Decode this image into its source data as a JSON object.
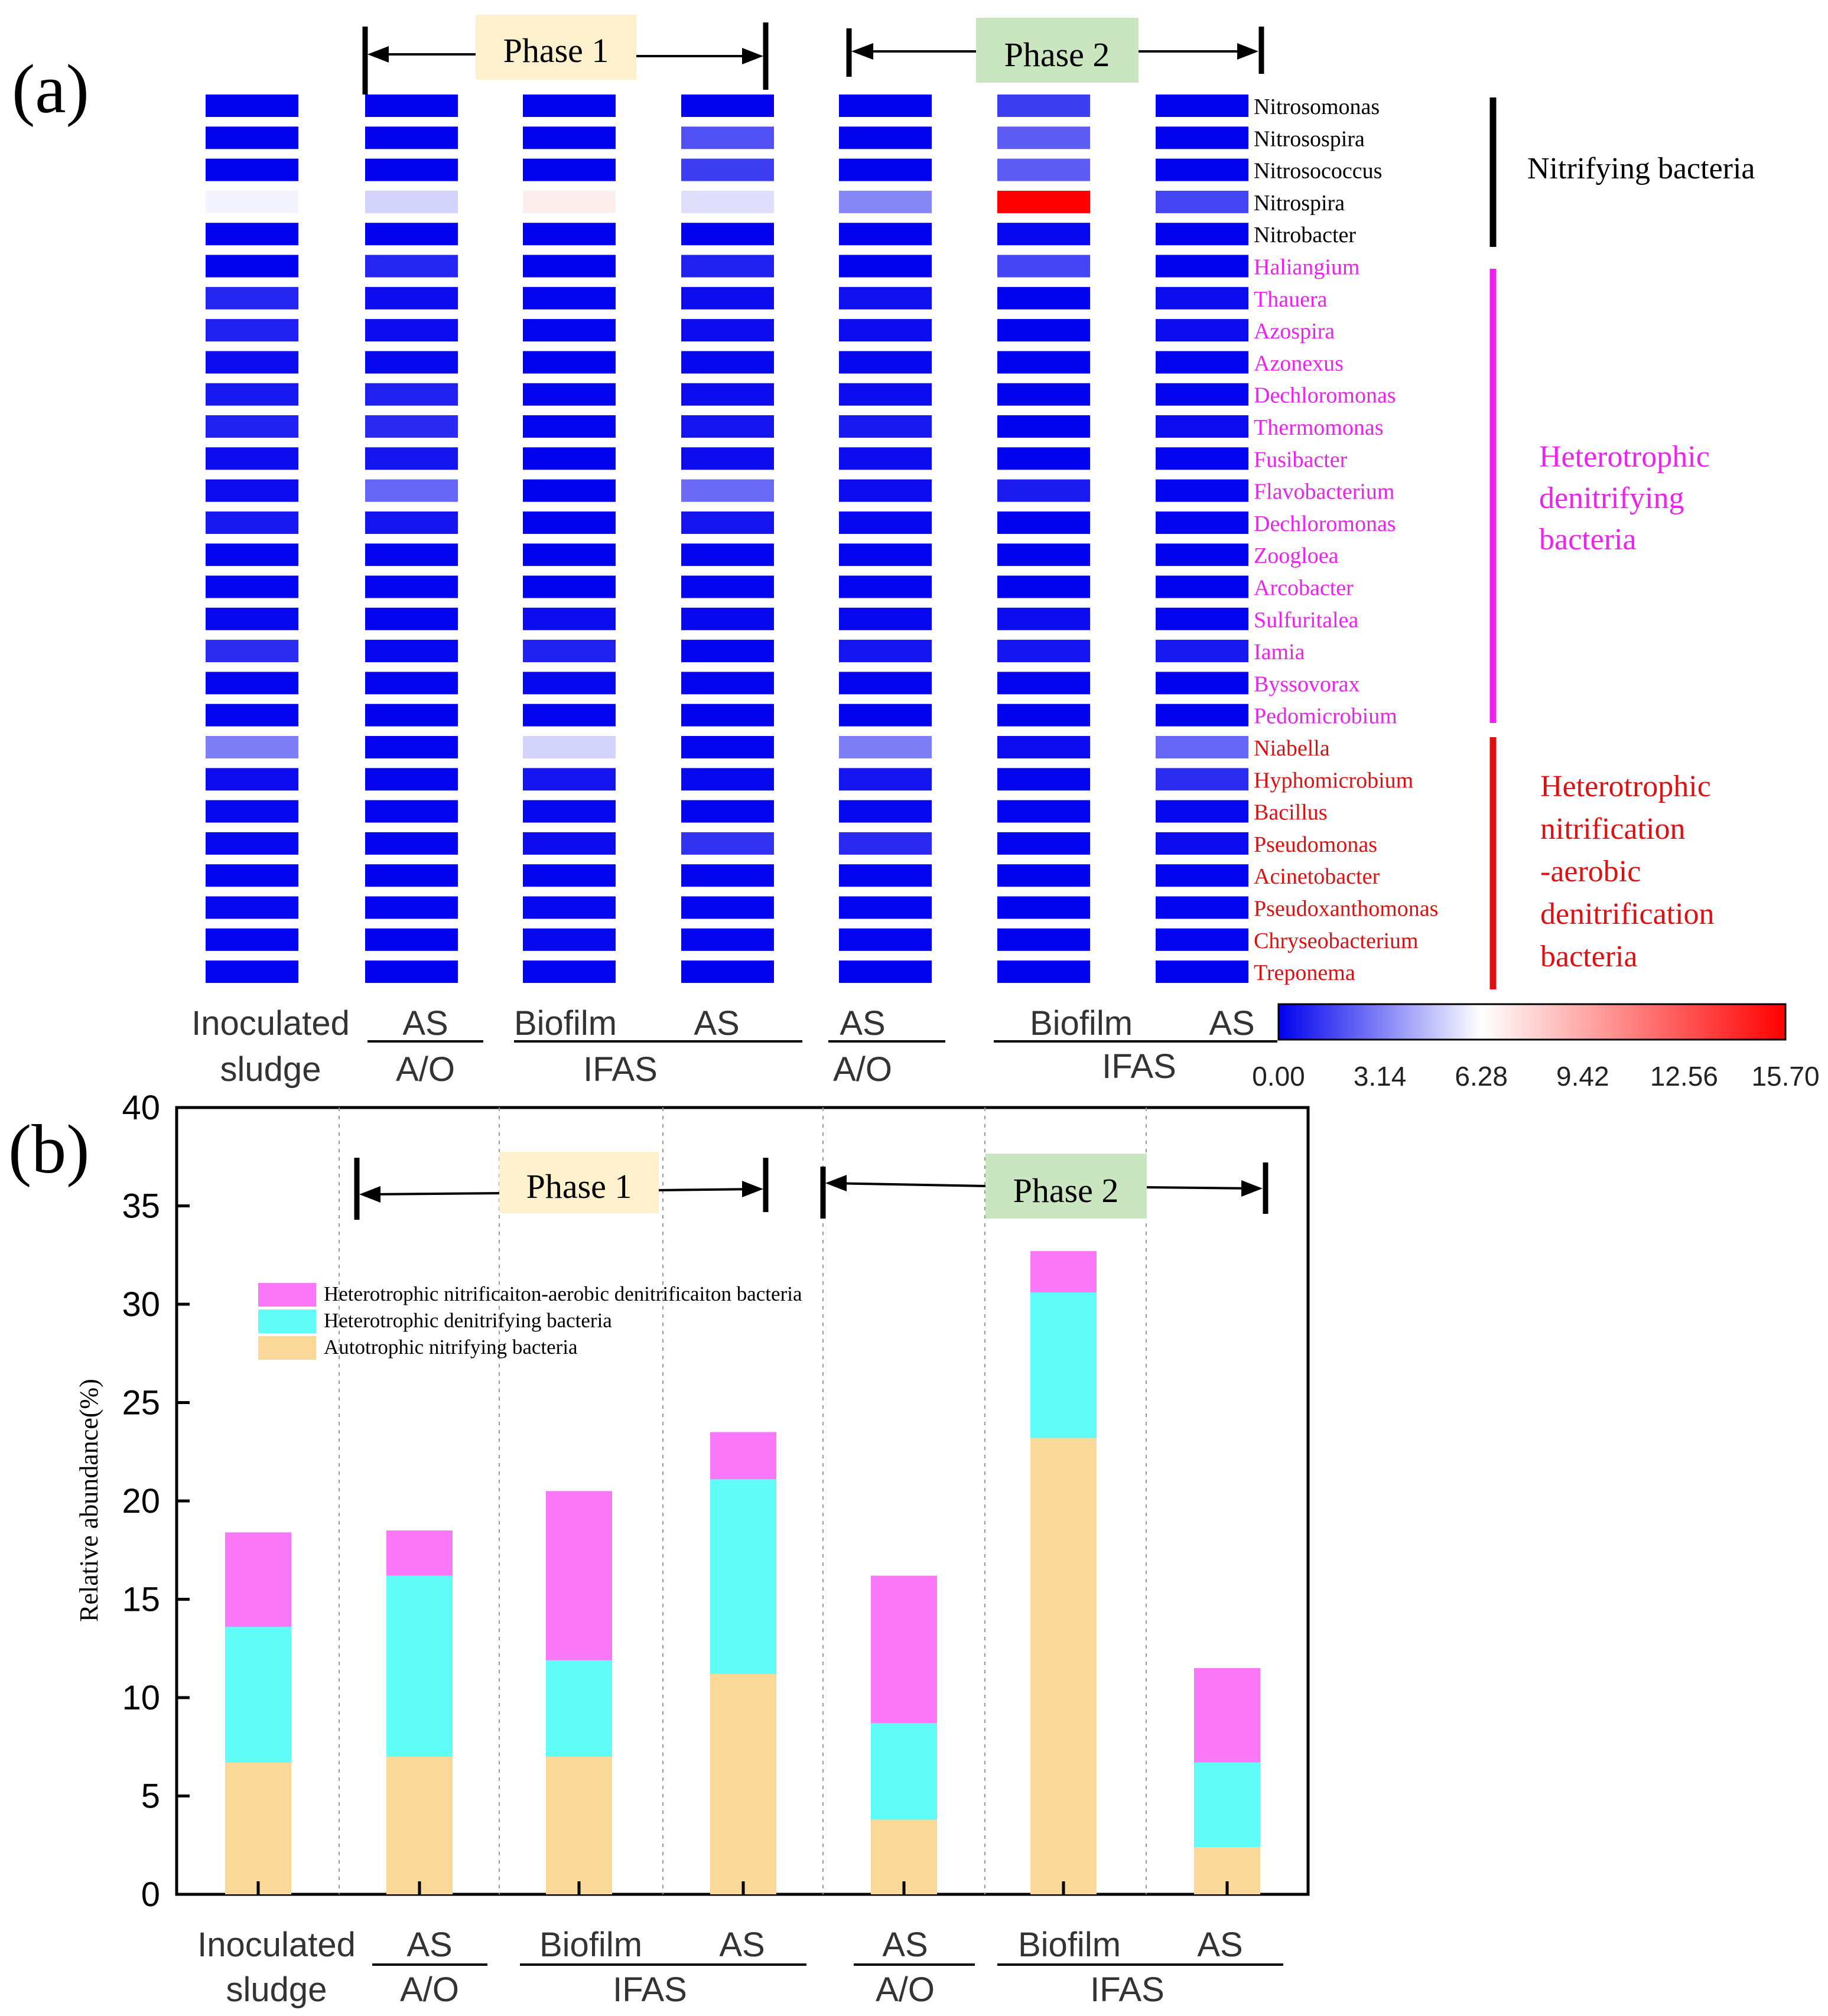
{
  "panel_labels": {
    "a": "(a)",
    "b": "(b)"
  },
  "phases": {
    "phase1": "Phase 1",
    "phase2": "Phase 2"
  },
  "groups": {
    "nitrifying": "Nitrifying bacteria",
    "heterotrophic_denitrifying": [
      "Heterotrophic",
      "denitrifying",
      "bacteria"
    ],
    "hn_ad": [
      "Heterotrophic",
      "nitrification",
      "-aerobic",
      "denitrification",
      "bacteria"
    ]
  },
  "colors": {
    "nitrifying": "#000000",
    "heterotrophic_denitrifying": "#ee22ee",
    "hn_ad": "#dd1111",
    "heat_low": "#0000ee",
    "heat_mid": "#ffffff",
    "heat_high": "#ff0000",
    "bar_autotrophic": "#fad898",
    "bar_denitrifying": "#5ffcf8",
    "bar_hnad": "#fa78f8",
    "phase1_box": "#fdf0cc",
    "phase2_box": "#c9e6c0"
  },
  "x_labels": [
    {
      "top": "Inoculated",
      "bottom": "sludge"
    },
    {
      "top": "AS",
      "bottom": "A/O"
    },
    {
      "top": "Biofilm",
      "bottom": ""
    },
    {
      "top": "AS",
      "bottom": ""
    },
    {
      "top": "AS",
      "bottom": "A/O"
    },
    {
      "top": "Biofilm",
      "bottom": ""
    },
    {
      "top": "AS",
      "bottom": ""
    }
  ],
  "ifas_label": "IFAS",
  "chart_data": [
    {
      "type": "heatmap",
      "title": "",
      "colorbar": {
        "min": 0,
        "max": 15.7,
        "ticks": [
          "0.00",
          "3.14",
          "6.28",
          "9.42",
          "12.56",
          "15.70"
        ]
      },
      "columns": [
        "Inoculated sludge",
        "A/O AS (Phase 1)",
        "IFAS Biofilm (Phase 1)",
        "IFAS AS (Phase 1)",
        "A/O AS (Phase 2)",
        "IFAS Biofilm (Phase 2)",
        "IFAS AS (Phase 2)"
      ],
      "rows": [
        {
          "name": "Nitrosomonas",
          "group": "nitrifying",
          "values": [
            0.05,
            0.05,
            0.05,
            0.05,
            0.05,
            1.5,
            0.05
          ]
        },
        {
          "name": "Nitrosospira",
          "group": "nitrifying",
          "values": [
            0.05,
            0.05,
            0.05,
            2.0,
            0.05,
            2.3,
            0.05
          ]
        },
        {
          "name": "Nitrosococcus",
          "group": "nitrifying",
          "values": [
            0.05,
            0.05,
            0.05,
            1.5,
            0.05,
            2.3,
            0.05
          ]
        },
        {
          "name": "Nitrospira",
          "group": "nitrifying",
          "values": [
            6.0,
            5.2,
            6.9,
            5.5,
            3.3,
            15.7,
            1.7
          ]
        },
        {
          "name": "Nitrobacter",
          "group": "nitrifying",
          "values": [
            0.05,
            0.05,
            0.05,
            0.05,
            0.05,
            0.2,
            0.05
          ]
        },
        {
          "name": "Haliangium",
          "group": "heterotrophic_denitrifying",
          "values": [
            0.05,
            0.9,
            0.05,
            0.8,
            0.05,
            1.7,
            0.05
          ]
        },
        {
          "name": "Thauera",
          "group": "heterotrophic_denitrifying",
          "values": [
            0.9,
            0.3,
            0.1,
            0.3,
            0.4,
            0.05,
            0.3
          ]
        },
        {
          "name": "Azospira",
          "group": "heterotrophic_denitrifying",
          "values": [
            0.8,
            0.3,
            0.1,
            0.3,
            0.3,
            0.05,
            0.3
          ]
        },
        {
          "name": "Azonexus",
          "group": "heterotrophic_denitrifying",
          "values": [
            0.3,
            0.2,
            0.05,
            0.2,
            0.2,
            0.05,
            0.1
          ]
        },
        {
          "name": "Dechloromonas",
          "group": "heterotrophic_denitrifying",
          "values": [
            0.6,
            0.8,
            0.1,
            0.3,
            0.3,
            0.05,
            0.1
          ]
        },
        {
          "name": "Thermomonas",
          "group": "heterotrophic_denitrifying",
          "values": [
            0.8,
            1.0,
            0.1,
            0.5,
            0.6,
            0.05,
            0.3
          ]
        },
        {
          "name": "Fusibacter",
          "group": "heterotrophic_denitrifying",
          "values": [
            0.3,
            0.5,
            0.05,
            0.3,
            0.3,
            0.05,
            0.1
          ]
        },
        {
          "name": "Flavobacterium",
          "group": "heterotrophic_denitrifying",
          "values": [
            0.3,
            2.5,
            0.05,
            2.6,
            0.3,
            0.7,
            0.1
          ]
        },
        {
          "name": "Dechloromonas",
          "group": "heterotrophic_denitrifying",
          "values": [
            0.6,
            0.5,
            0.05,
            0.5,
            0.2,
            0.05,
            0.1
          ]
        },
        {
          "name": "Zoogloea",
          "group": "heterotrophic_denitrifying",
          "values": [
            0.1,
            0.1,
            0.05,
            0.1,
            0.1,
            0.05,
            0.05
          ]
        },
        {
          "name": "Arcobacter",
          "group": "heterotrophic_denitrifying",
          "values": [
            0.1,
            0.1,
            0.05,
            0.1,
            0.1,
            0.05,
            0.05
          ]
        },
        {
          "name": "Sulfuritalea",
          "group": "heterotrophic_denitrifying",
          "values": [
            0.2,
            0.1,
            0.3,
            0.2,
            0.2,
            0.3,
            0.1
          ]
        },
        {
          "name": "Iamia",
          "group": "heterotrophic_denitrifying",
          "values": [
            1.1,
            0.2,
            0.8,
            0.1,
            0.5,
            0.5,
            0.6
          ]
        },
        {
          "name": "Byssovorax",
          "group": "heterotrophic_denitrifying",
          "values": [
            0.1,
            0.1,
            0.2,
            0.1,
            0.1,
            0.1,
            0.05
          ]
        },
        {
          "name": "Pedomicrobium",
          "group": "heterotrophic_denitrifying",
          "values": [
            0.1,
            0.05,
            0.1,
            0.05,
            0.05,
            0.05,
            0.05
          ]
        },
        {
          "name": "Niabella",
          "group": "hn_ad",
          "values": [
            3.1,
            0.1,
            5.2,
            0.1,
            3.1,
            0.3,
            2.5
          ]
        },
        {
          "name": "Hyphomicrobium",
          "group": "hn_ad",
          "values": [
            0.3,
            0.1,
            0.5,
            0.2,
            0.5,
            0.1,
            1.1
          ]
        },
        {
          "name": "Bacillus",
          "group": "hn_ad",
          "values": [
            0.2,
            0.1,
            0.2,
            0.1,
            0.2,
            0.1,
            0.2
          ]
        },
        {
          "name": "Pseudomonas",
          "group": "hn_ad",
          "values": [
            0.2,
            0.1,
            0.3,
            1.2,
            1.0,
            0.1,
            0.3
          ]
        },
        {
          "name": "Acinetobacter",
          "group": "hn_ad",
          "values": [
            0.1,
            0.05,
            0.1,
            0.1,
            0.1,
            0.05,
            0.1
          ]
        },
        {
          "name": "Pseudoxanthomonas",
          "group": "hn_ad",
          "values": [
            0.2,
            0.1,
            0.2,
            0.1,
            0.1,
            0.05,
            0.1
          ]
        },
        {
          "name": "Chryseobacterium",
          "group": "hn_ad",
          "values": [
            0.1,
            0.05,
            0.2,
            0.1,
            0.1,
            0.05,
            0.1
          ]
        },
        {
          "name": "Treponema",
          "group": "hn_ad",
          "values": [
            0.1,
            0.05,
            0.1,
            0.05,
            0.05,
            0.05,
            0.05
          ]
        }
      ]
    },
    {
      "type": "bar",
      "stacked": true,
      "title": "",
      "ylabel": "Relative abundance(%)",
      "ylim": [
        0,
        40
      ],
      "yticks": [
        0,
        5,
        10,
        15,
        20,
        25,
        30,
        35,
        40
      ],
      "categories": [
        "Inoculated sludge",
        "A/O AS (Phase 1)",
        "IFAS Biofilm (Phase 1)",
        "IFAS AS (Phase 1)",
        "A/O AS (Phase 2)",
        "IFAS Biofilm (Phase 2)",
        "IFAS AS (Phase 2)"
      ],
      "legend_position": "top-left",
      "series": [
        {
          "name": "Autotrophic nitrifying bacteria",
          "values": [
            6.7,
            7.0,
            7.0,
            11.2,
            3.8,
            23.2,
            2.4
          ]
        },
        {
          "name": "Heterotrophic denitrifying bacteria",
          "values": [
            6.9,
            9.2,
            4.9,
            9.9,
            4.9,
            7.4,
            4.3
          ]
        },
        {
          "name": "Heterotrophic nitrificaiton-aerobic denitrificaiton bacteria",
          "values": [
            4.8,
            2.3,
            8.6,
            2.4,
            7.5,
            2.1,
            4.8
          ]
        }
      ]
    }
  ]
}
